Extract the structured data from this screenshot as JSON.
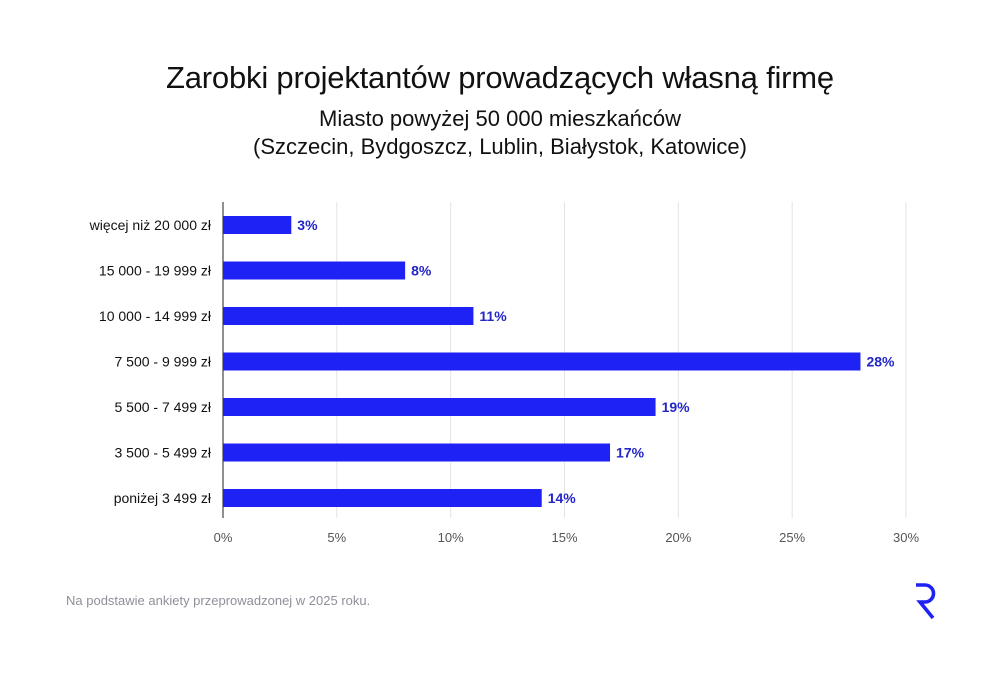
{
  "chart_data": {
    "type": "bar",
    "orientation": "horizontal",
    "title": "Zarobki projektantów prowadzących własną firmę",
    "subtitle": [
      "Miasto powyżej 50 000 mieszkańców",
      "(Szczecin, Bydgoszcz, Lublin, Białystok, Katowice)"
    ],
    "categories": [
      "więcej niż 20 000 zł",
      "15 000 - 19 999 zł",
      "10 000 - 14 999 zł",
      "7 500 - 9 999 zł",
      "5 500 - 7 499 zł",
      "3 500 - 5 499 zł",
      "poniżej 3 499 zł"
    ],
    "values": [
      3,
      8,
      11,
      28,
      19,
      17,
      14
    ],
    "value_labels": [
      "3%",
      "8%",
      "11%",
      "28%",
      "19%",
      "17%",
      "14%"
    ],
    "xlim": [
      0,
      30
    ],
    "xticks": [
      0,
      5,
      10,
      15,
      20,
      25,
      30
    ],
    "xtick_labels": [
      "0%",
      "5%",
      "10%",
      "15%",
      "20%",
      "25%",
      "30%"
    ],
    "grid": true,
    "bar_color": "#1f22f5",
    "label_color": "#2326c8",
    "grid_color": "#e3e3e3"
  },
  "footnote": "Na podstawie ankiety przeprowadzonej w 2025 roku.",
  "logo": {
    "icon": "r-letter-logo",
    "color": "#1f22f5"
  }
}
